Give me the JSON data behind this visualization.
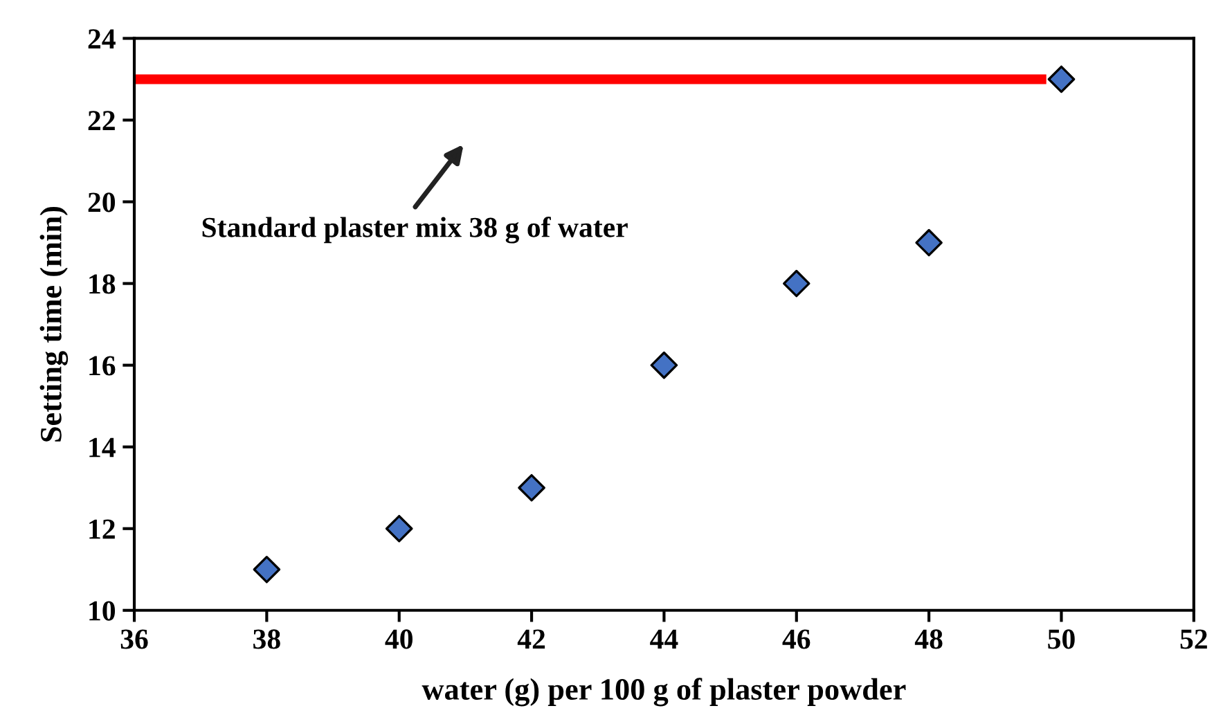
{
  "chart_data": {
    "type": "scatter",
    "xlabel": "water (g) per 100 g of plaster powder",
    "ylabel": "Setting time (min)",
    "series": [
      {
        "type": "line",
        "color": "#ff0000",
        "x": [
          36,
          49.7
        ],
        "values": [
          23,
          23
        ],
        "marker": "none"
      },
      {
        "color": "#4472c4",
        "x": [
          38,
          40,
          42,
          44,
          46,
          48,
          50
        ],
        "values": [
          11,
          12,
          13,
          16,
          18,
          19,
          23
        ],
        "marker": "diamond"
      }
    ],
    "annotations": [
      "Standard plaster mix 38 g of water"
    ],
    "xlim": [
      36,
      52
    ],
    "xticks": [
      36,
      38,
      40,
      42,
      44,
      46,
      48,
      50,
      52
    ],
    "ylim": [
      10,
      24
    ],
    "yticks": [
      10,
      12,
      14,
      16,
      18,
      20,
      22,
      24
    ],
    "grid": false,
    "legend": false
  }
}
